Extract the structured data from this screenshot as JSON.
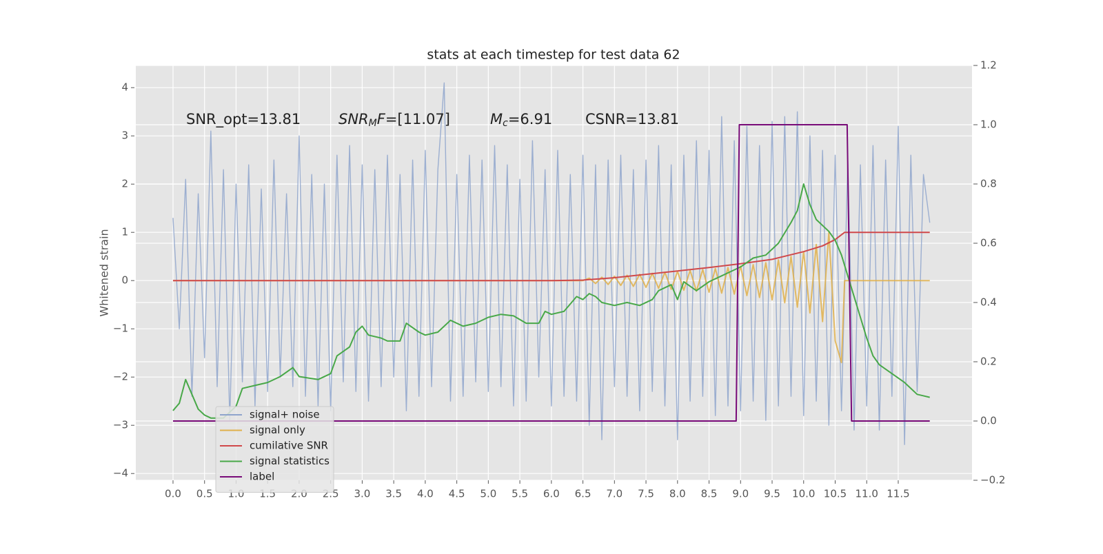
{
  "chart_data": {
    "type": "line",
    "title": "stats at each timestep for test data 62",
    "ylabel": "Whitened strain",
    "grid": true,
    "legend": "lower left",
    "xlim": [
      -0.59,
      12.67
    ],
    "ylim": [
      -4.14,
      4.46
    ],
    "y2lim": [
      -0.2,
      1.2
    ],
    "xticks": [
      {
        "value": 0,
        "label": "0.0"
      },
      0.5,
      {
        "value": 1,
        "label": "1.0"
      },
      1.5,
      {
        "value": 2,
        "label": "2.0"
      },
      2.5,
      {
        "value": 3,
        "label": "3.0"
      },
      3.5,
      {
        "value": 4,
        "label": "4.0"
      },
      4.5,
      {
        "value": 5,
        "label": "5.0"
      },
      5.5,
      {
        "value": 6,
        "label": "6.0"
      },
      6.5,
      {
        "value": 7,
        "label": "7.0"
      },
      7.5,
      {
        "value": 8,
        "label": "8.0"
      },
      8.5,
      {
        "value": 9,
        "label": "9.0"
      },
      9.5,
      {
        "value": 10,
        "label": "10.0"
      },
      10.5,
      {
        "value": 11,
        "label": "11.0"
      },
      11.5
    ],
    "yticks": [
      {
        "value": -4,
        "label": "−4"
      },
      {
        "value": -3,
        "label": "−3"
      },
      {
        "value": -2,
        "label": "−2"
      },
      {
        "value": -1,
        "label": "−1"
      },
      0,
      1,
      2,
      3,
      4
    ],
    "y2ticks": [
      {
        "value": -0.2,
        "label": "−0.2"
      },
      {
        "value": 0,
        "label": "0.0"
      },
      0.2,
      0.4,
      0.6,
      0.8,
      {
        "value": 1,
        "label": "1.0"
      },
      1.2
    ],
    "annotations": [
      [
        {
          "text": "SNR_opt=13.81",
          "style": "normal"
        }
      ],
      [
        {
          "text": "SNR",
          "style": "italic"
        },
        {
          "text": "M",
          "style": "sub"
        },
        {
          "text": "F",
          "style": "italic"
        },
        {
          "text": "=[11.07]",
          "style": "normal"
        }
      ],
      [
        {
          "text": "M",
          "style": "italic"
        },
        {
          "text": "c",
          "style": "sub"
        },
        {
          "text": "=6.91",
          "style": "normal"
        }
      ],
      [
        {
          "text": "CSNR=13.81",
          "style": "normal"
        }
      ]
    ],
    "series": [
      {
        "name": "signal+ noise",
        "color": "#8ea4cc",
        "axis": "y",
        "x": [
          0,
          0.1,
          0.2,
          0.3,
          0.4,
          0.5,
          0.6,
          0.7,
          0.8,
          0.9,
          1,
          1.1,
          1.2,
          1.3,
          1.4,
          1.5,
          1.6,
          1.7,
          1.8,
          1.9,
          2,
          2.1,
          2.2,
          2.3,
          2.4,
          2.5,
          2.6,
          2.7,
          2.8,
          2.9,
          3,
          3.1,
          3.2,
          3.3,
          3.4,
          3.5,
          3.6,
          3.7,
          3.8,
          3.9,
          4,
          4.1,
          4.2,
          4.3,
          4.4,
          4.5,
          4.6,
          4.7,
          4.8,
          4.9,
          5,
          5.1,
          5.2,
          5.3,
          5.4,
          5.5,
          5.6,
          5.7,
          5.8,
          5.9,
          6,
          6.1,
          6.2,
          6.3,
          6.4,
          6.5,
          6.6,
          6.7,
          6.8,
          6.9,
          7,
          7.1,
          7.2,
          7.3,
          7.4,
          7.5,
          7.6,
          7.7,
          7.8,
          7.9,
          8,
          8.1,
          8.2,
          8.3,
          8.4,
          8.5,
          8.6,
          8.7,
          8.8,
          8.9,
          9,
          9.1,
          9.2,
          9.3,
          9.4,
          9.5,
          9.6,
          9.7,
          9.8,
          9.9,
          10,
          10.1,
          10.2,
          10.3,
          10.4,
          10.5,
          10.6,
          10.7,
          10.8,
          10.9,
          11,
          11.1,
          11.2,
          11.3,
          11.4,
          11.5,
          11.6,
          11.7,
          11.8,
          11.9,
          12
        ],
        "values": [
          1.3,
          -1.0,
          2.1,
          -2.4,
          1.8,
          -1.6,
          3.1,
          -2.2,
          2.3,
          -2.9,
          2.0,
          -2.1,
          2.4,
          -2.6,
          1.9,
          -2.3,
          2.5,
          -2.0,
          1.8,
          -2.2,
          3.0,
          -2.4,
          2.2,
          -2.6,
          2.0,
          -2.7,
          2.6,
          -2.1,
          2.8,
          -2.3,
          2.4,
          -2.5,
          2.3,
          -2.2,
          2.6,
          -2.0,
          2.2,
          -2.7,
          2.5,
          -2.4,
          2.7,
          -2.2,
          2.3,
          4.1,
          -2.5,
          2.2,
          -2.4,
          2.6,
          -2.1,
          2.5,
          -2.3,
          2.8,
          -2.2,
          2.4,
          -2.6,
          2.1,
          -2.5,
          2.9,
          -2.0,
          2.3,
          -2.6,
          2.7,
          -2.4,
          2.2,
          -2.5,
          2.6,
          -3.0,
          2.4,
          -3.3,
          2.5,
          -2.2,
          2.6,
          -2.4,
          2.3,
          -2.7,
          2.5,
          -2.3,
          2.8,
          -2.6,
          2.4,
          -3.3,
          2.6,
          -2.5,
          2.9,
          -2.4,
          2.7,
          -2.8,
          3.4,
          -2.6,
          2.9,
          -2.7,
          3.2,
          -2.5,
          2.8,
          -2.9,
          3.3,
          -2.6,
          3.4,
          -2.4,
          3.5,
          -2.8,
          3.0,
          -2.5,
          2.7,
          -3.0,
          2.6,
          -2.7,
          2.5,
          -3.1,
          2.4,
          -2.6,
          2.8,
          -3.1,
          2.5,
          -2.4,
          3.2,
          -3.4,
          2.6,
          -2.3,
          2.2,
          1.2
        ]
      },
      {
        "name": "signal only",
        "color": "#e0b04a",
        "axis": "y",
        "x": [
          0,
          6.5,
          6.6,
          6.7,
          6.8,
          6.9,
          7,
          7.1,
          7.2,
          7.3,
          7.4,
          7.5,
          7.6,
          7.7,
          7.8,
          7.9,
          8,
          8.1,
          8.2,
          8.3,
          8.4,
          8.5,
          8.6,
          8.7,
          8.8,
          8.9,
          9,
          9.1,
          9.2,
          9.3,
          9.4,
          9.5,
          9.6,
          9.7,
          9.8,
          9.9,
          10,
          10.1,
          10.2,
          10.3,
          10.4,
          10.5,
          10.6,
          10.65,
          12
        ],
        "values": [
          0,
          0,
          0.05,
          -0.06,
          0.07,
          -0.08,
          0.09,
          -0.1,
          0.11,
          -0.12,
          0.13,
          -0.14,
          0.15,
          -0.16,
          0.17,
          -0.18,
          0.19,
          -0.2,
          0.21,
          -0.22,
          0.23,
          -0.24,
          0.25,
          -0.26,
          0.27,
          -0.28,
          0.3,
          -0.31,
          0.33,
          -0.35,
          0.37,
          -0.4,
          0.43,
          -0.46,
          0.5,
          -0.55,
          0.6,
          -0.67,
          0.75,
          -0.85,
          1.0,
          -1.25,
          -1.7,
          0,
          0
        ]
      },
      {
        "name": "cumilative SNR",
        "color": "#d0484a",
        "axis": "y",
        "x": [
          0,
          6,
          6.5,
          7,
          7.5,
          8,
          8.5,
          9,
          9.5,
          10,
          10.3,
          10.5,
          10.6,
          10.65,
          12
        ],
        "values": [
          0,
          0,
          0.01,
          0.06,
          0.13,
          0.2,
          0.27,
          0.35,
          0.44,
          0.6,
          0.72,
          0.85,
          0.95,
          1.0,
          1.0
        ]
      },
      {
        "name": "signal statistics",
        "color": "#48a848",
        "axis": "y2",
        "x": [
          0,
          0.1,
          0.2,
          0.3,
          0.4,
          0.5,
          0.6,
          0.8,
          1.0,
          1.1,
          1.3,
          1.5,
          1.7,
          1.9,
          2.0,
          2.3,
          2.5,
          2.6,
          2.8,
          2.9,
          3.0,
          3.1,
          3.3,
          3.4,
          3.6,
          3.7,
          3.9,
          4.0,
          4.2,
          4.4,
          4.6,
          4.8,
          5.0,
          5.2,
          5.4,
          5.6,
          5.8,
          5.9,
          6.0,
          6.2,
          6.4,
          6.5,
          6.6,
          6.7,
          6.8,
          7.0,
          7.2,
          7.4,
          7.6,
          7.7,
          7.9,
          8.0,
          8.1,
          8.3,
          8.5,
          8.7,
          8.8,
          9.0,
          9.2,
          9.4,
          9.5,
          9.6,
          9.8,
          9.9,
          10.0,
          10.1,
          10.2,
          10.4,
          10.5,
          10.6,
          10.7,
          10.8,
          10.9,
          11.0,
          11.1,
          11.2,
          11.4,
          11.6,
          11.8,
          11.9,
          12.0
        ],
        "values": [
          0.035,
          0.06,
          0.14,
          0.09,
          0.04,
          0.02,
          0.01,
          0.01,
          0.05,
          0.11,
          0.12,
          0.13,
          0.15,
          0.18,
          0.15,
          0.14,
          0.16,
          0.22,
          0.25,
          0.3,
          0.32,
          0.29,
          0.28,
          0.27,
          0.27,
          0.33,
          0.3,
          0.29,
          0.3,
          0.34,
          0.32,
          0.33,
          0.35,
          0.36,
          0.355,
          0.33,
          0.33,
          0.37,
          0.36,
          0.37,
          0.42,
          0.41,
          0.43,
          0.42,
          0.4,
          0.39,
          0.4,
          0.39,
          0.41,
          0.44,
          0.46,
          0.41,
          0.47,
          0.44,
          0.47,
          0.49,
          0.5,
          0.52,
          0.55,
          0.56,
          0.58,
          0.6,
          0.67,
          0.71,
          0.8,
          0.73,
          0.68,
          0.64,
          0.61,
          0.56,
          0.49,
          0.42,
          0.35,
          0.28,
          0.22,
          0.19,
          0.16,
          0.13,
          0.09,
          0.085,
          0.08
        ]
      },
      {
        "name": "label",
        "color": "#780a78",
        "axis": "y2",
        "x": [
          0,
          8.93,
          8.98,
          10.69,
          10.76,
          12
        ],
        "values": [
          0,
          0,
          1,
          1,
          0,
          0
        ]
      }
    ]
  }
}
